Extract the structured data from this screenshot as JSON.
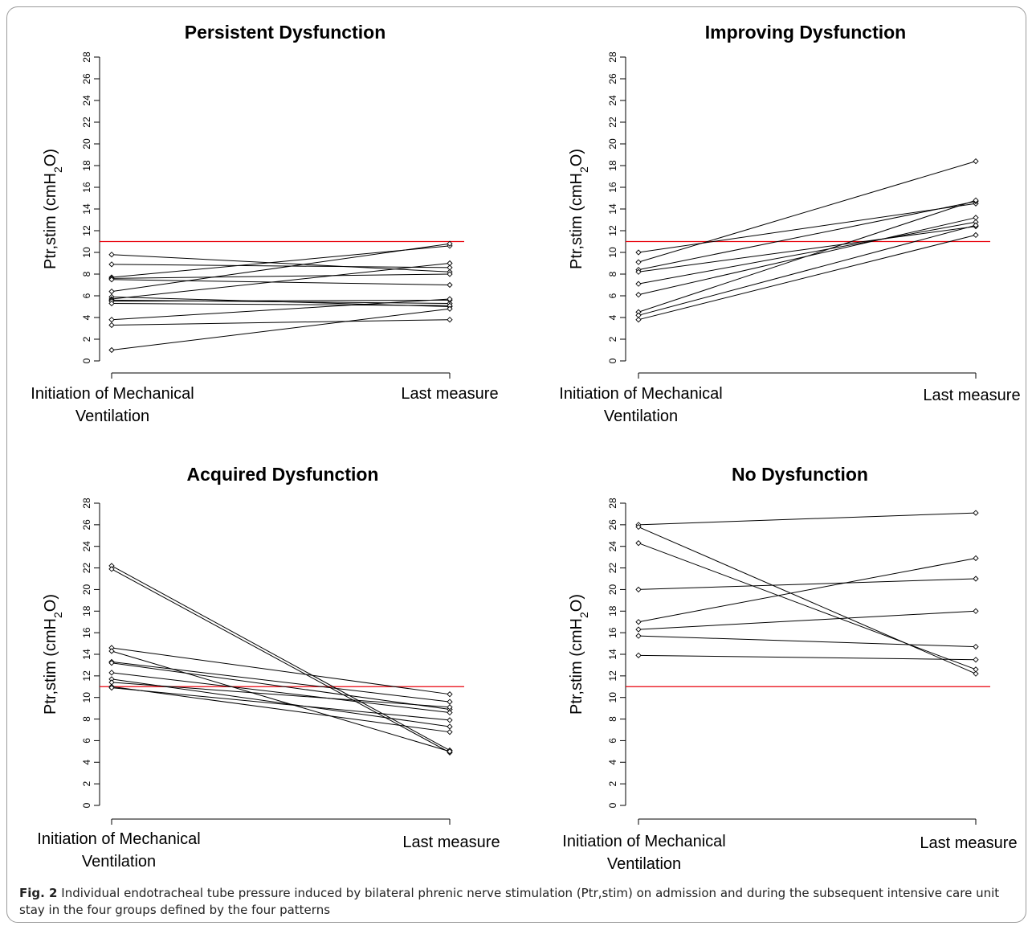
{
  "figure": {
    "caption_label": "Fig. 2",
    "caption_text": "Individual endotracheal tube pressure induced by bilateral phrenic nerve stimulation (Ptr,stim) on admission and during the subsequent intensive care unit stay in the four groups defined by the four patterns"
  },
  "threshold_color": "#e8000b",
  "chart_data": [
    {
      "type": "line",
      "title": "Persistent Dysfunction",
      "ylabel": "Ptr,stim (cmH2O)",
      "ylim": [
        0,
        28
      ],
      "yticks": [
        0,
        2,
        4,
        6,
        8,
        10,
        12,
        14,
        16,
        18,
        20,
        22,
        24,
        26,
        28
      ],
      "x": [
        "Initiation of Mechanical\nVentilation",
        "Last measure"
      ],
      "threshold": 11,
      "series": [
        {
          "values": [
            9.8,
            8.2
          ]
        },
        {
          "values": [
            8.9,
            8.6
          ]
        },
        {
          "values": [
            7.7,
            10.6
          ]
        },
        {
          "values": [
            7.6,
            8.0
          ]
        },
        {
          "values": [
            7.5,
            7.0
          ]
        },
        {
          "values": [
            6.4,
            10.8
          ]
        },
        {
          "values": [
            5.9,
            5.0
          ]
        },
        {
          "values": [
            5.7,
            9.0
          ]
        },
        {
          "values": [
            5.6,
            5.3
          ]
        },
        {
          "values": [
            5.5,
            5.6
          ]
        },
        {
          "values": [
            5.3,
            5.1
          ]
        },
        {
          "values": [
            3.8,
            5.7
          ]
        },
        {
          "values": [
            3.3,
            3.8
          ]
        },
        {
          "values": [
            1.0,
            4.8
          ]
        }
      ]
    },
    {
      "type": "line",
      "title": "Improving Dysfunction",
      "ylabel": "Ptr,stim (cmH2O)",
      "ylim": [
        0,
        28
      ],
      "yticks": [
        0,
        2,
        4,
        6,
        8,
        10,
        12,
        14,
        16,
        18,
        20,
        22,
        24,
        26,
        28
      ],
      "x": [
        "Initiation of Mechanical\nVentilation",
        "Last measure"
      ],
      "threshold": 11,
      "series": [
        {
          "values": [
            10.0,
            14.5
          ]
        },
        {
          "values": [
            9.1,
            18.4
          ]
        },
        {
          "values": [
            8.4,
            14.7
          ]
        },
        {
          "values": [
            8.2,
            12.4
          ]
        },
        {
          "values": [
            7.1,
            12.8
          ]
        },
        {
          "values": [
            6.1,
            13.2
          ]
        },
        {
          "values": [
            4.5,
            14.8
          ]
        },
        {
          "values": [
            4.2,
            12.5
          ]
        },
        {
          "values": [
            3.8,
            11.6
          ]
        }
      ]
    },
    {
      "type": "line",
      "title": "Acquired Dysfunction",
      "ylabel": "Ptr,stim (cmH2O)",
      "ylim": [
        0,
        28
      ],
      "yticks": [
        0,
        2,
        4,
        6,
        8,
        10,
        12,
        14,
        16,
        18,
        20,
        22,
        24,
        26,
        28
      ],
      "x": [
        "Initiation of Mechanical\nVentilation",
        "Last measure"
      ],
      "threshold": 11,
      "series": [
        {
          "values": [
            22.2,
            5.1
          ]
        },
        {
          "values": [
            21.9,
            4.9
          ]
        },
        {
          "values": [
            14.6,
            10.3
          ]
        },
        {
          "values": [
            14.3,
            5.0
          ]
        },
        {
          "values": [
            13.3,
            9.6
          ]
        },
        {
          "values": [
            13.2,
            8.9
          ]
        },
        {
          "values": [
            12.3,
            8.6
          ]
        },
        {
          "values": [
            11.7,
            7.3
          ]
        },
        {
          "values": [
            11.4,
            9.1
          ]
        },
        {
          "values": [
            11.0,
            6.8
          ]
        },
        {
          "values": [
            10.9,
            7.9
          ]
        }
      ]
    },
    {
      "type": "line",
      "title": "No Dysfunction",
      "ylabel": "Ptr,stim (cmH2O)",
      "ylim": [
        0,
        28
      ],
      "yticks": [
        0,
        2,
        4,
        6,
        8,
        10,
        12,
        14,
        16,
        18,
        20,
        22,
        24,
        26,
        28
      ],
      "x": [
        "Initiation of Mechanical\nVentilation",
        "Last measure"
      ],
      "threshold": 11,
      "series": [
        {
          "values": [
            26.0,
            27.1
          ]
        },
        {
          "values": [
            25.8,
            12.2
          ]
        },
        {
          "values": [
            24.3,
            12.6
          ]
        },
        {
          "values": [
            20.0,
            21.0
          ]
        },
        {
          "values": [
            17.0,
            22.9
          ]
        },
        {
          "values": [
            16.3,
            18.0
          ]
        },
        {
          "values": [
            15.7,
            14.7
          ]
        },
        {
          "values": [
            13.9,
            13.5
          ]
        }
      ]
    }
  ]
}
